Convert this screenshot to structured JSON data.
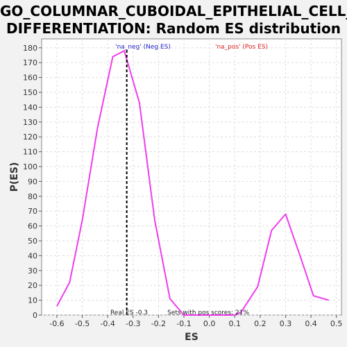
{
  "title_line1": "GO_COLUMNAR_CUBOIDAL_EPITHELIAL_CELL_",
  "title_line2": "DIFFERENTIATION: Random ES distribution",
  "chart_data": {
    "type": "line",
    "xlabel": "ES",
    "ylabel": "P(ES)",
    "xlim": [
      -0.66,
      0.52
    ],
    "ylim": [
      0,
      186
    ],
    "xticks": [
      -0.6,
      -0.5,
      -0.4,
      -0.3,
      -0.2,
      -0.1,
      0.0,
      0.1,
      0.2,
      0.3,
      0.4,
      0.5
    ],
    "xtick_labels": [
      "-0.6",
      "-0.5",
      "-0.4",
      "-0.3",
      "-0.2",
      "-0.1",
      "0.0",
      "0.1",
      "0.2",
      "0.3",
      "0.4",
      "0.5"
    ],
    "yticks": [
      0,
      10,
      20,
      30,
      40,
      50,
      60,
      70,
      80,
      90,
      100,
      110,
      120,
      130,
      140,
      150,
      160,
      170,
      180
    ],
    "grid": true,
    "series": [
      {
        "color": "#ee3cee",
        "x": [
          -0.6,
          -0.55,
          -0.5,
          -0.44,
          -0.38,
          -0.335,
          -0.275,
          -0.215,
          -0.155,
          -0.1,
          0.1,
          0.125,
          0.19,
          0.245,
          0.3,
          0.355,
          0.41,
          0.47
        ],
        "y": [
          6,
          22,
          64,
          126,
          174,
          178,
          143,
          64,
          11,
          0,
          0,
          2,
          19,
          57,
          68,
          41,
          13,
          10
        ]
      }
    ],
    "real_es_line": {
      "x": -0.325,
      "color": "#000000"
    },
    "annotations": {
      "neg_label": "'na_neg' (Neg ES)",
      "neg_color": "#2222cc",
      "pos_label": "'na_pos' (Pos ES)",
      "pos_color": "#dd2222",
      "real_es_text": "Real ES -0.3",
      "pos_scores_text": "Sets with pos scores: 21%"
    }
  }
}
